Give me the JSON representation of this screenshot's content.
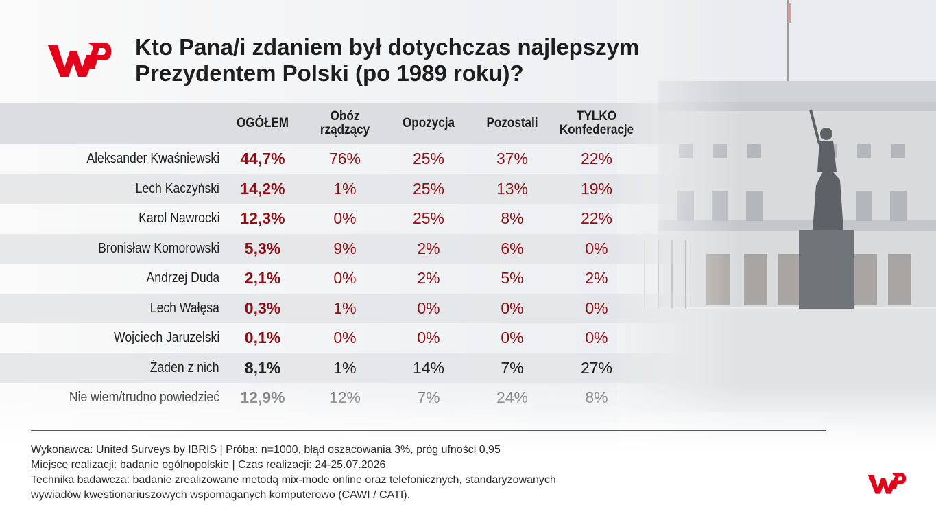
{
  "header": {
    "title_line1": "Kto Pana/i zdaniem był dotychczas najlepszym",
    "title_line2": "Prezydentem Polski (po 1989 roku)?"
  },
  "brand": {
    "logo_text": "WP",
    "accent": "#e3001b"
  },
  "colors": {
    "value_red": "#8b0f15",
    "neutral": "#1e1e1e",
    "gray": "#6b6b6b"
  },
  "chart_data": {
    "type": "table",
    "title": "Kto Pana/i zdaniem był dotychczas najlepszym Prezydentem Polski (po 1989 roku)?",
    "columns": [
      {
        "line1": "OGÓŁEM",
        "line2": ""
      },
      {
        "line1": "Obóz",
        "line2": "rządzący"
      },
      {
        "line1": "Opozycja",
        "line2": ""
      },
      {
        "line1": "Pozostali",
        "line2": ""
      },
      {
        "line1": "TYLKO",
        "line2": "Konfederacje"
      }
    ],
    "rows": [
      {
        "name": "Aleksander Kwaśniewski",
        "values": [
          "44,7%",
          "76%",
          "25%",
          "37%",
          "22%"
        ],
        "style": "red"
      },
      {
        "name": "Lech Kaczyński",
        "values": [
          "14,2%",
          "1%",
          "25%",
          "13%",
          "19%"
        ],
        "style": "red"
      },
      {
        "name": "Karol Nawrocki",
        "values": [
          "12,3%",
          "0%",
          "25%",
          "8%",
          "22%"
        ],
        "style": "red"
      },
      {
        "name": "Bronisław Komorowski",
        "values": [
          "5,3%",
          "9%",
          "2%",
          "6%",
          "0%"
        ],
        "style": "red"
      },
      {
        "name": "Andrzej Duda",
        "values": [
          "2,1%",
          "0%",
          "2%",
          "5%",
          "2%"
        ],
        "style": "red"
      },
      {
        "name": "Lech Wałęsa",
        "values": [
          "0,3%",
          "1%",
          "0%",
          "0%",
          "0%"
        ],
        "style": "red"
      },
      {
        "name": "Wojciech Jaruzelski",
        "values": [
          "0,1%",
          "0%",
          "0%",
          "0%",
          "0%"
        ],
        "style": "red"
      },
      {
        "name": "Żaden z nich",
        "values": [
          "8,1%",
          "1%",
          "14%",
          "7%",
          "27%"
        ],
        "style": "neutral"
      },
      {
        "name": "Nie wiem/trudno powiedzieć",
        "values": [
          "12,9%",
          "12%",
          "7%",
          "24%",
          "8%"
        ],
        "style": "gray"
      }
    ]
  },
  "footer": {
    "line1": "Wykonawca: United Surveys by IBRIS | Próba: n=1000, błąd oszacowania 3%, próg ufności 0,95",
    "line2": "Miejsce realizacji: badanie ogólnopolskie | Czas realizacji: 24-25.07.2026",
    "line3": "Technika badawcza: badanie zrealizowane metodą mix-mode online oraz telefonicznych, standaryzowanych",
    "line4": "wywiadów kwestionariuszowych wspomaganych komputerowo (CAWI / CATI)."
  }
}
